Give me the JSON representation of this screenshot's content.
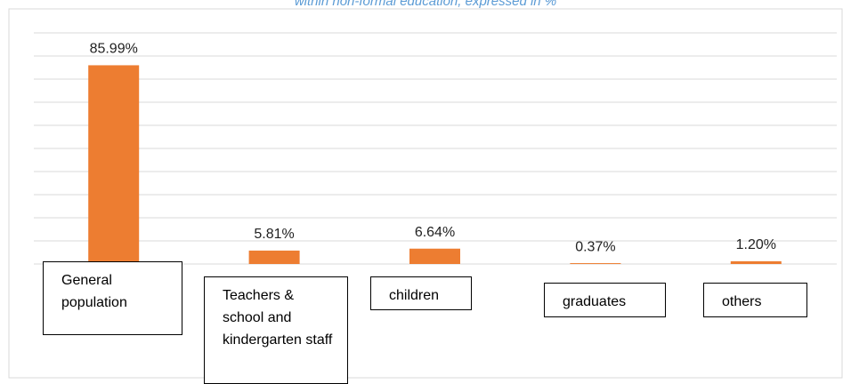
{
  "chart_data": {
    "type": "bar",
    "title": "within non-formal education, expressed in %",
    "categories": [
      "General population",
      "Teachers & school and kindergarten staff",
      "children",
      "graduates",
      "others"
    ],
    "values": [
      85.99,
      5.81,
      6.64,
      0.37,
      1.2
    ],
    "value_labels": [
      "85.99%",
      "5.81%",
      "6.64%",
      "0.37%",
      "1.20%"
    ],
    "color": "#ed7d31",
    "ylim": [
      0,
      100
    ],
    "yticks": [
      0,
      10,
      20,
      30,
      40,
      50,
      60,
      70,
      80,
      90,
      100
    ],
    "grid": true
  }
}
